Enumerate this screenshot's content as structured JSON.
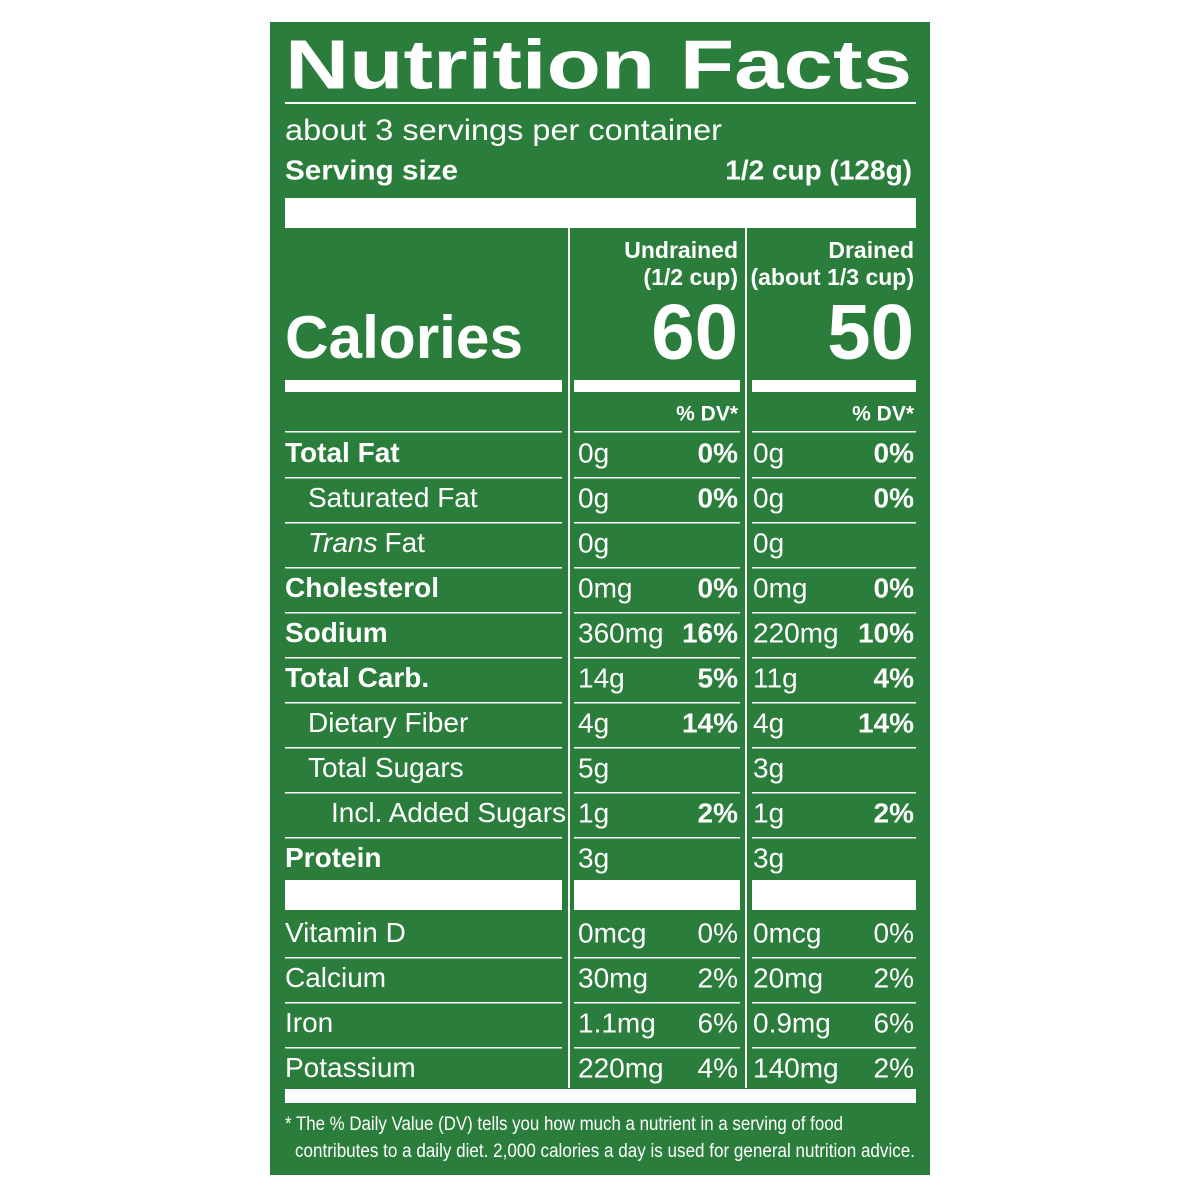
{
  "header": {
    "title": "Nutrition Facts",
    "servings": "about 3 servings per container",
    "serving_size_label": "Serving size",
    "serving_size": "1/2 cup (128g)"
  },
  "calories_label": "Calories",
  "columns": [
    {
      "name": "Undrained",
      "size": "(1/2 cup)",
      "calories": "60",
      "dv_label": "% DV*"
    },
    {
      "name": "Drained",
      "size": "(about 1/3 cup)",
      "calories": "50",
      "dv_label": "% DV*"
    }
  ],
  "nutrients": [
    {
      "label": "Total Fat",
      "bold": true,
      "indent": 0,
      "values": [
        {
          "amount": "0g",
          "dv": "0%"
        },
        {
          "amount": "0g",
          "dv": "0%"
        }
      ]
    },
    {
      "label": "Saturated Fat",
      "bold": false,
      "indent": 1,
      "values": [
        {
          "amount": "0g",
          "dv": "0%"
        },
        {
          "amount": "0g",
          "dv": "0%"
        }
      ]
    },
    {
      "label_italic": "Trans",
      "label": "Fat",
      "bold": false,
      "indent": 1,
      "values": [
        {
          "amount": "0g"
        },
        {
          "amount": "0g"
        }
      ]
    },
    {
      "label": "Cholesterol",
      "bold": true,
      "indent": 0,
      "values": [
        {
          "amount": "0mg",
          "dv": "0%"
        },
        {
          "amount": "0mg",
          "dv": "0%"
        }
      ]
    },
    {
      "label": "Sodium",
      "bold": true,
      "indent": 0,
      "values": [
        {
          "amount": "360mg",
          "dv": "16%"
        },
        {
          "amount": "220mg",
          "dv": "10%"
        }
      ]
    },
    {
      "label": "Total Carb.",
      "bold": true,
      "indent": 0,
      "values": [
        {
          "amount": "14g",
          "dv": "5%"
        },
        {
          "amount": "11g",
          "dv": "4%"
        }
      ]
    },
    {
      "label": "Dietary Fiber",
      "bold": false,
      "indent": 1,
      "values": [
        {
          "amount": "4g",
          "dv": "14%"
        },
        {
          "amount": "4g",
          "dv": "14%"
        }
      ]
    },
    {
      "label": "Total Sugars",
      "bold": false,
      "indent": 1,
      "values": [
        {
          "amount": "5g"
        },
        {
          "amount": "3g"
        }
      ]
    },
    {
      "label": "Incl. Added Sugars",
      "bold": false,
      "indent": 2,
      "values": [
        {
          "amount": "1g",
          "dv": "2%"
        },
        {
          "amount": "1g",
          "dv": "2%"
        }
      ]
    },
    {
      "label": "Protein",
      "bold": true,
      "indent": 0,
      "values": [
        {
          "amount": "3g"
        },
        {
          "amount": "3g"
        }
      ]
    }
  ],
  "vitamins": [
    {
      "label": "Vitamin D",
      "values": [
        {
          "amount": "0mcg",
          "dv": "0%"
        },
        {
          "amount": "0mcg",
          "dv": "0%"
        }
      ]
    },
    {
      "label": "Calcium",
      "values": [
        {
          "amount": "30mg",
          "dv": "2%"
        },
        {
          "amount": "20mg",
          "dv": "2%"
        }
      ]
    },
    {
      "label": "Iron",
      "values": [
        {
          "amount": "1.1mg",
          "dv": "6%"
        },
        {
          "amount": "0.9mg",
          "dv": "6%"
        }
      ]
    },
    {
      "label": "Potassium",
      "values": [
        {
          "amount": "220mg",
          "dv": "4%"
        },
        {
          "amount": "140mg",
          "dv": "2%"
        }
      ]
    }
  ],
  "footnote": [
    "* The % Daily Value (DV) tells you how much a nutrient in a serving of food",
    "contributes to a daily diet. 2,000 calories a day is used for general nutrition advice."
  ]
}
